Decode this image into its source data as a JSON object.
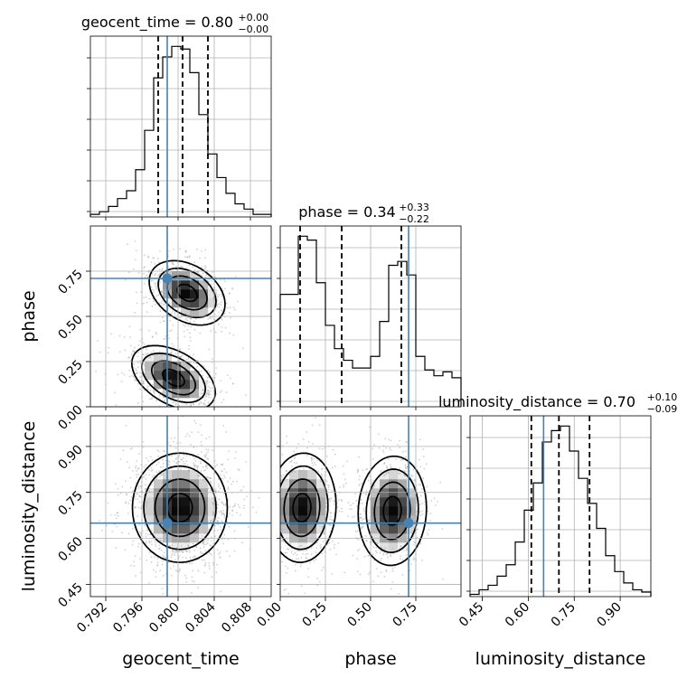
{
  "colors": {
    "truth": "#4682b4",
    "hist": "#000000",
    "grid": "#b0b0b0",
    "scatter": "#9a9a9a"
  },
  "chart_data": {
    "type": "corner",
    "parameters": [
      {
        "name": "geocent_time",
        "label": "geocent_time",
        "title": "geocent_time = 0.80",
        "title_sup": "+0.00",
        "title_sub": "−0.00",
        "range": [
          0.7903,
          0.8103
        ],
        "ticks": [
          0.792,
          0.796,
          0.8,
          0.804,
          0.808
        ],
        "tick_labels": [
          "0.792",
          "0.796",
          "0.800",
          "0.804",
          "0.808"
        ],
        "truth": 0.7988,
        "quantiles": [
          0.7978,
          0.8005,
          0.8033
        ]
      },
      {
        "name": "phase",
        "label": "phase",
        "title": "phase = 0.34",
        "title_sup": "+0.33",
        "title_sub": "−0.22",
        "range": [
          0.0,
          1.0
        ],
        "ticks": [
          0.0,
          0.25,
          0.5,
          0.75
        ],
        "tick_labels": [
          "0.00",
          "0.25",
          "0.50",
          "0.75"
        ],
        "truth": 0.71,
        "quantiles": [
          0.11,
          0.34,
          0.67
        ]
      },
      {
        "name": "luminosity_distance",
        "label": "luminosity_distance",
        "title": "luminosity_distance = 0.70",
        "title_sup": "+0.10",
        "title_sub": "−0.09",
        "range": [
          0.41,
          1.0
        ],
        "ticks": [
          0.45,
          0.6,
          0.75,
          0.9
        ],
        "tick_labels": [
          "0.45",
          "0.60",
          "0.75",
          "0.90"
        ],
        "truth": 0.65,
        "quantiles": [
          0.61,
          0.7,
          0.8
        ]
      }
    ],
    "histograms": [
      {
        "param": "geocent_time",
        "bins": 20,
        "counts": [
          1,
          2,
          4,
          7,
          10,
          18,
          33,
          53,
          61,
          65,
          64,
          55,
          39,
          24,
          15,
          9,
          5,
          3,
          1,
          1
        ]
      },
      {
        "param": "phase",
        "bins": 20,
        "counts": [
          58,
          58,
          88,
          86,
          64,
          42,
          30,
          24,
          20,
          20,
          26,
          44,
          73,
          75,
          68,
          26,
          19,
          16,
          18,
          15
        ]
      },
      {
        "param": "luminosity_distance",
        "bins": 20,
        "counts": [
          1,
          3,
          5,
          9,
          14,
          24,
          38,
          50,
          68,
          73,
          75,
          64,
          52,
          41,
          30,
          18,
          11,
          6,
          3,
          2
        ]
      }
    ],
    "pairs": [
      {
        "x": "geocent_time",
        "y": "phase",
        "modes": [
          {
            "mx": 0.7995,
            "my": 0.16,
            "sx": 0.0022,
            "sy": 0.085,
            "w": 0.5,
            "rho": -0.45
          },
          {
            "mx": 0.801,
            "my": 0.63,
            "sx": 0.002,
            "sy": 0.085,
            "w": 0.5,
            "rho": -0.35
          }
        ]
      },
      {
        "x": "geocent_time",
        "y": "luminosity_distance",
        "modes": [
          {
            "mx": 0.8002,
            "my": 0.7,
            "sx": 0.0025,
            "sy": 0.085,
            "w": 1.0,
            "rho": 0.0
          }
        ]
      },
      {
        "x": "phase",
        "y": "luminosity_distance",
        "modes": [
          {
            "mx": 0.12,
            "my": 0.7,
            "sx": 0.09,
            "sy": 0.085,
            "w": 0.5,
            "rho": 0.05
          },
          {
            "mx": 0.62,
            "my": 0.69,
            "sx": 0.09,
            "sy": 0.085,
            "w": 0.5,
            "rho": 0.05
          }
        ]
      }
    ],
    "grid": true
  }
}
